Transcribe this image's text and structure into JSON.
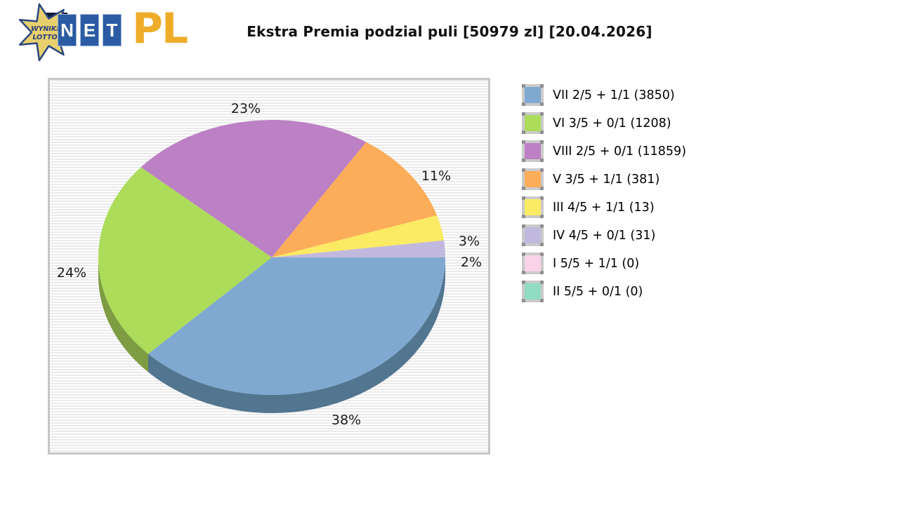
{
  "logo": {
    "star_text_line1": "WYNIKI",
    "star_text_line2": "LOTTO",
    "tiles": [
      "N",
      "E",
      "T"
    ],
    "suffix": "PL"
  },
  "title": "Ekstra Premia podzial puli [50979 zl] [20.04.2026]",
  "chart_data": {
    "type": "pie",
    "style": "3d",
    "title": "Ekstra Premia podzial puli [50979 zl] [20.04.2026]",
    "pool_label": "50979 zl",
    "date_label": "20.04.2026",
    "legend_position": "right",
    "slices": [
      {
        "legend": "VII 2/5 + 1/1 (3850)",
        "tier": "VII 2/5 + 1/1",
        "winners": 3850,
        "percent": 38,
        "percent_label": "38%",
        "color": "#7FA9D0",
        "side_color": "#527590"
      },
      {
        "legend": "VI 3/5 + 0/1 (1208)",
        "tier": "VI 3/5 + 0/1",
        "winners": 1208,
        "percent": 24,
        "percent_label": "24%",
        "color": "#ACDC5A",
        "side_color": "#7E9C42"
      },
      {
        "legend": "VIII 2/5 + 0/1 (11859)",
        "tier": "VIII 2/5 + 0/1",
        "winners": 11859,
        "percent": 23,
        "percent_label": "23%",
        "color": "#BC80C4",
        "side_color": "#8E5D95"
      },
      {
        "legend": "V 3/5 + 1/1 (381)",
        "tier": "V 3/5 + 1/1",
        "winners": 381,
        "percent": 11,
        "percent_label": "11%",
        "color": "#FBAD59",
        "side_color": "#C28139"
      },
      {
        "legend": "III 4/5 + 1/1 (13)",
        "tier": "III 4/5 + 1/1",
        "winners": 13,
        "percent": 3,
        "percent_label": "3%",
        "color": "#FBEA63",
        "side_color": "#C2B43F"
      },
      {
        "legend": "IV 4/5 + 0/1 (31)",
        "tier": "IV 4/5 + 0/1",
        "winners": 31,
        "percent": 2,
        "percent_label": "2%",
        "color": "#C1B9DD",
        "side_color": "#948CB3"
      },
      {
        "legend": "I 5/5 + 1/1 (0)",
        "tier": "I 5/5 + 1/1",
        "winners": 0,
        "percent": 0,
        "percent_label": "",
        "color": "#FAD3E9",
        "side_color": "#C6A2B9"
      },
      {
        "legend": "II 5/5 + 0/1 (0)",
        "tier": "II 5/5 + 0/1",
        "winners": 0,
        "percent": 0,
        "percent_label": "",
        "color": "#8FDCC2",
        "side_color": "#65AE96"
      }
    ]
  }
}
